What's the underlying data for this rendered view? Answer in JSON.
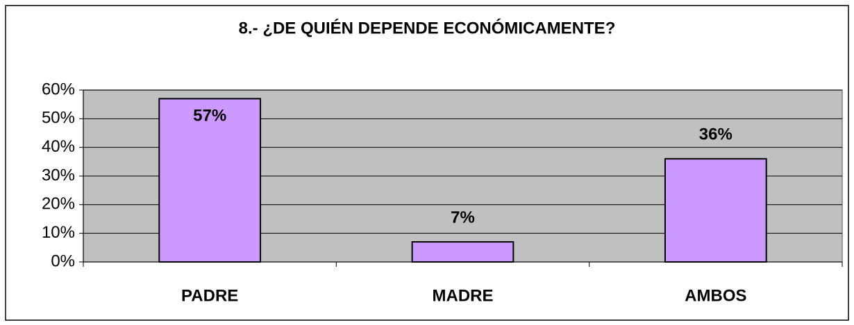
{
  "chart_data": {
    "type": "bar",
    "title": "8.- ¿DE QUIÉN DEPENDE ECONÓMICAMENTE?",
    "categories": [
      "PADRE",
      "MADRE",
      "AMBOS"
    ],
    "values": [
      57,
      7,
      36
    ],
    "value_labels": [
      "57%",
      "7%",
      "36%"
    ],
    "color": "#cc99ff",
    "ylim": [
      0,
      60
    ],
    "yticks": [
      {
        "value": 0,
        "label": "0%"
      },
      {
        "value": 10,
        "label": "10%"
      },
      {
        "value": 20,
        "label": "20%"
      },
      {
        "value": 30,
        "label": "30%"
      },
      {
        "value": 40,
        "label": "40%"
      },
      {
        "value": 50,
        "label": "50%"
      },
      {
        "value": 60,
        "label": "60%"
      }
    ],
    "grid": true
  }
}
